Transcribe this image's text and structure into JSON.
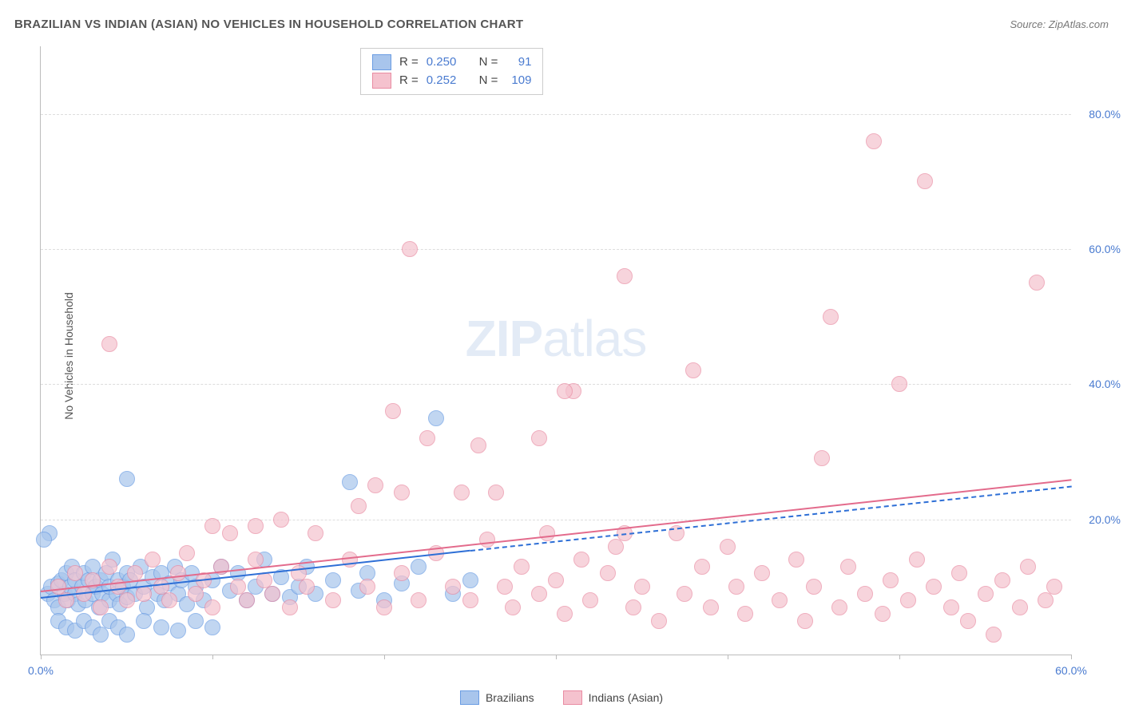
{
  "header": {
    "title": "BRAZILIAN VS INDIAN (ASIAN) NO VEHICLES IN HOUSEHOLD CORRELATION CHART",
    "source_prefix": "Source: ",
    "source": "ZipAtlas.com"
  },
  "chart": {
    "type": "scatter",
    "ylabel": "No Vehicles in Household",
    "background_color": "#ffffff",
    "grid_color": "#dddddd",
    "axis_color": "#bbbbbb",
    "tick_color": "#4a7bd0",
    "xlim": [
      0,
      60
    ],
    "ylim": [
      0,
      90
    ],
    "xtick_values": [
      0,
      10,
      20,
      30,
      40,
      50,
      60
    ],
    "xtick_labels": [
      "0.0%",
      "",
      "",
      "",
      "",
      "",
      "60.0%"
    ],
    "ytick_values": [
      20,
      40,
      60,
      80
    ],
    "ytick_labels": [
      "20.0%",
      "40.0%",
      "60.0%",
      "80.0%"
    ],
    "marker_radius": 9,
    "marker_border_width": 1.5,
    "marker_fill_opacity": 0.25,
    "series": [
      {
        "name": "Brazilians",
        "fill": "#a8c5ec",
        "stroke": "#6b9de3",
        "line_color": "#2e6fd6",
        "R": "0.250",
        "N": "91",
        "trend": {
          "x1": 0,
          "y1": 8.5,
          "x2": 25,
          "y2": 15.5,
          "dash_x_ext": 60,
          "dash_y_ext": 25
        },
        "points": [
          [
            0.4,
            9
          ],
          [
            0.6,
            10
          ],
          [
            0.8,
            8
          ],
          [
            1,
            10.5
          ],
          [
            1,
            7
          ],
          [
            1.2,
            11
          ],
          [
            1.4,
            9
          ],
          [
            1.5,
            12
          ],
          [
            1.6,
            8
          ],
          [
            1.7,
            10
          ],
          [
            1.8,
            13
          ],
          [
            2,
            9
          ],
          [
            2,
            11
          ],
          [
            2.2,
            7.5
          ],
          [
            2.4,
            10
          ],
          [
            2.5,
            12
          ],
          [
            2.6,
            8
          ],
          [
            2.8,
            11
          ],
          [
            3,
            9
          ],
          [
            3,
            13
          ],
          [
            3.2,
            10
          ],
          [
            3.4,
            7
          ],
          [
            3.5,
            11
          ],
          [
            3.6,
            9
          ],
          [
            3.8,
            12
          ],
          [
            4,
            8
          ],
          [
            4,
            10
          ],
          [
            4.2,
            14
          ],
          [
            4.4,
            9
          ],
          [
            4.5,
            11
          ],
          [
            4.6,
            7.5
          ],
          [
            4.8,
            10
          ],
          [
            5,
            12
          ],
          [
            5,
            8.5
          ],
          [
            5.2,
            11
          ],
          [
            5.5,
            9
          ],
          [
            5.8,
            13
          ],
          [
            6,
            10
          ],
          [
            6.2,
            7
          ],
          [
            6.5,
            11.5
          ],
          [
            6.8,
            9
          ],
          [
            7,
            12
          ],
          [
            7.2,
            8
          ],
          [
            7.5,
            10.5
          ],
          [
            7.8,
            13
          ],
          [
            8,
            9
          ],
          [
            8.2,
            11
          ],
          [
            8.5,
            7.5
          ],
          [
            8.8,
            12
          ],
          [
            9,
            10
          ],
          [
            9.5,
            8
          ],
          [
            10,
            11
          ],
          [
            10.5,
            13
          ],
          [
            11,
            9.5
          ],
          [
            11.5,
            12
          ],
          [
            12,
            8
          ],
          [
            12.5,
            10
          ],
          [
            13,
            14
          ],
          [
            13.5,
            9
          ],
          [
            14,
            11.5
          ],
          [
            14.5,
            8.5
          ],
          [
            15,
            10
          ],
          [
            15.5,
            13
          ],
          [
            16,
            9
          ],
          [
            17,
            11
          ],
          [
            18,
            25.5
          ],
          [
            18.5,
            9.5
          ],
          [
            19,
            12
          ],
          [
            20,
            8
          ],
          [
            21,
            10.5
          ],
          [
            22,
            13
          ],
          [
            23,
            35
          ],
          [
            24,
            9
          ],
          [
            25,
            11
          ],
          [
            0.5,
            18
          ],
          [
            1,
            5
          ],
          [
            1.5,
            4
          ],
          [
            2,
            3.5
          ],
          [
            2.5,
            5
          ],
          [
            3,
            4
          ],
          [
            3.5,
            3
          ],
          [
            4,
            5
          ],
          [
            4.5,
            4
          ],
          [
            5,
            3
          ],
          [
            6,
            5
          ],
          [
            7,
            4
          ],
          [
            8,
            3.5
          ],
          [
            9,
            5
          ],
          [
            10,
            4
          ],
          [
            5,
            26
          ],
          [
            0.2,
            17
          ]
        ]
      },
      {
        "name": "Indians (Asian)",
        "fill": "#f5c2ce",
        "stroke": "#e98ca3",
        "line_color": "#e36b8c",
        "R": "0.252",
        "N": "109",
        "trend": {
          "x1": 0,
          "y1": 9.5,
          "x2": 60,
          "y2": 26
        },
        "points": [
          [
            1,
            10
          ],
          [
            1.5,
            8
          ],
          [
            2,
            12
          ],
          [
            2.5,
            9
          ],
          [
            3,
            11
          ],
          [
            3.5,
            7
          ],
          [
            4,
            13
          ],
          [
            4.5,
            10
          ],
          [
            5,
            8
          ],
          [
            5.5,
            12
          ],
          [
            6,
            9
          ],
          [
            6.5,
            14
          ],
          [
            7,
            10
          ],
          [
            7.5,
            8
          ],
          [
            8,
            12
          ],
          [
            8.5,
            15
          ],
          [
            9,
            9
          ],
          [
            9.5,
            11
          ],
          [
            10,
            7
          ],
          [
            10.5,
            13
          ],
          [
            11,
            18
          ],
          [
            11.5,
            10
          ],
          [
            12,
            8
          ],
          [
            12.5,
            14
          ],
          [
            13,
            11
          ],
          [
            13.5,
            9
          ],
          [
            14,
            20
          ],
          [
            14.5,
            7
          ],
          [
            15,
            12
          ],
          [
            15.5,
            10
          ],
          [
            16,
            18
          ],
          [
            17,
            8
          ],
          [
            18,
            14
          ],
          [
            18.5,
            22
          ],
          [
            19,
            10
          ],
          [
            19.5,
            25
          ],
          [
            20,
            7
          ],
          [
            20.5,
            36
          ],
          [
            21,
            12
          ],
          [
            21.5,
            60
          ],
          [
            22,
            8
          ],
          [
            22.5,
            32
          ],
          [
            23,
            15
          ],
          [
            24,
            10
          ],
          [
            24.5,
            24
          ],
          [
            25,
            8
          ],
          [
            25.5,
            31
          ],
          [
            26,
            17
          ],
          [
            27,
            10
          ],
          [
            27.5,
            7
          ],
          [
            28,
            13
          ],
          [
            29,
            9
          ],
          [
            29.5,
            18
          ],
          [
            30,
            11
          ],
          [
            30.5,
            6
          ],
          [
            31,
            39
          ],
          [
            31.5,
            14
          ],
          [
            32,
            8
          ],
          [
            33,
            12
          ],
          [
            33.5,
            16
          ],
          [
            34,
            56
          ],
          [
            34.5,
            7
          ],
          [
            35,
            10
          ],
          [
            36,
            5
          ],
          [
            37,
            18
          ],
          [
            37.5,
            9
          ],
          [
            38,
            42
          ],
          [
            38.5,
            13
          ],
          [
            39,
            7
          ],
          [
            40,
            16
          ],
          [
            40.5,
            10
          ],
          [
            41,
            6
          ],
          [
            42,
            12
          ],
          [
            43,
            8
          ],
          [
            44,
            14
          ],
          [
            44.5,
            5
          ],
          [
            45,
            10
          ],
          [
            45.5,
            29
          ],
          [
            46,
            50
          ],
          [
            46.5,
            7
          ],
          [
            47,
            13
          ],
          [
            48,
            9
          ],
          [
            48.5,
            76
          ],
          [
            49,
            6
          ],
          [
            49.5,
            11
          ],
          [
            50,
            40
          ],
          [
            50.5,
            8
          ],
          [
            51,
            14
          ],
          [
            51.5,
            70
          ],
          [
            52,
            10
          ],
          [
            53,
            7
          ],
          [
            53.5,
            12
          ],
          [
            54,
            5
          ],
          [
            55,
            9
          ],
          [
            55.5,
            3
          ],
          [
            56,
            11
          ],
          [
            57,
            7
          ],
          [
            57.5,
            13
          ],
          [
            58,
            55
          ],
          [
            58.5,
            8
          ],
          [
            59,
            10
          ],
          [
            4,
            46
          ],
          [
            10,
            19
          ],
          [
            12.5,
            19
          ],
          [
            21,
            24
          ],
          [
            26.5,
            24
          ],
          [
            29,
            32
          ],
          [
            30.5,
            39
          ],
          [
            34,
            18
          ]
        ]
      }
    ],
    "legend_bottom": [
      {
        "label": "Brazilians",
        "fill": "#a8c5ec",
        "stroke": "#6b9de3"
      },
      {
        "label": "Indians (Asian)",
        "fill": "#f5c2ce",
        "stroke": "#e98ca3"
      }
    ],
    "watermark": {
      "zip": "ZIP",
      "atlas": "atlas"
    }
  }
}
